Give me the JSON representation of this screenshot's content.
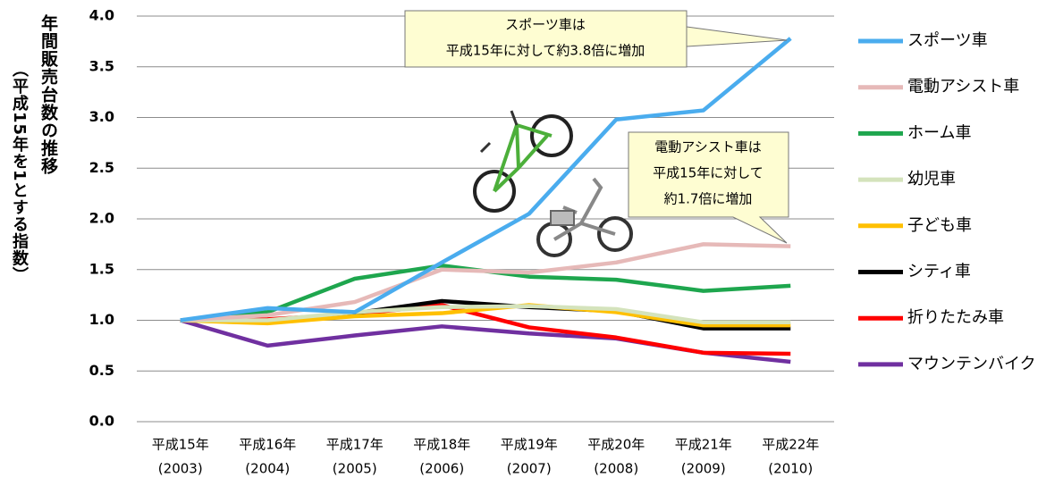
{
  "chart_data": {
    "type": "line",
    "y_label": [
      "年間販売台数の推移",
      "（平成15年を1とする指数）"
    ],
    "categories": [
      [
        "平成15年",
        "(2003)"
      ],
      [
        "平成16年",
        "(2004)"
      ],
      [
        "平成17年",
        "(2005)"
      ],
      [
        "平成18年",
        "(2006)"
      ],
      [
        "平成19年",
        "(2007)"
      ],
      [
        "平成20年",
        "(2008)"
      ],
      [
        "平成21年",
        "(2009)"
      ],
      [
        "平成22年",
        "(2010)"
      ]
    ],
    "series": [
      {
        "name": "スポーツ車",
        "color": "#4aacee",
        "values": [
          1.0,
          1.12,
          1.08,
          1.57,
          2.05,
          2.98,
          3.07,
          3.78
        ]
      },
      {
        "name": "電動アシスト車",
        "color": "#e6b9b8",
        "values": [
          1.0,
          1.05,
          1.18,
          1.5,
          1.47,
          1.57,
          1.75,
          1.73
        ]
      },
      {
        "name": "ホーム車",
        "color": "#1ea64e",
        "values": [
          1.0,
          1.08,
          1.41,
          1.54,
          1.43,
          1.4,
          1.29,
          1.34
        ]
      },
      {
        "name": "幼児車",
        "color": "#d4e3bc",
        "values": [
          1.0,
          1.0,
          1.08,
          1.13,
          1.14,
          1.11,
          0.98,
          0.98
        ]
      },
      {
        "name": "子ども車",
        "color": "#ffc000",
        "values": [
          1.0,
          0.97,
          1.04,
          1.07,
          1.15,
          1.08,
          0.95,
          0.95
        ]
      },
      {
        "name": "シティ車",
        "color": "#000000",
        "values": [
          1.0,
          0.99,
          1.07,
          1.19,
          1.13,
          1.09,
          0.92,
          0.92
        ]
      },
      {
        "name": "折りたたみ車",
        "color": "#ff0000",
        "values": [
          1.0,
          1.01,
          1.06,
          1.15,
          0.93,
          0.83,
          0.68,
          0.67
        ]
      },
      {
        "name": "マウンテンバイク",
        "color": "#7030a0",
        "values": [
          1.0,
          0.75,
          0.85,
          0.94,
          0.87,
          0.82,
          0.68,
          0.59
        ]
      }
    ],
    "ylim": [
      0,
      4
    ],
    "yticks": [
      {
        "value": 0,
        "label": "0.0"
      },
      0.5,
      {
        "value": 1,
        "label": "1.0"
      },
      1.5,
      {
        "value": 2,
        "label": "2.0"
      },
      2.5,
      {
        "value": 3,
        "label": "3.0"
      },
      3.5,
      {
        "value": 4,
        "label": "4.0"
      }
    ],
    "grid": true,
    "legend": "right",
    "annotations": [
      {
        "lines": [
          "スポーツ車は",
          "平成15年に対して約3.8倍に増加"
        ]
      },
      {
        "lines": [
          "電動アシスト車は",
          "平成15年に対して",
          "約1.7倍に増加"
        ]
      }
    ]
  }
}
